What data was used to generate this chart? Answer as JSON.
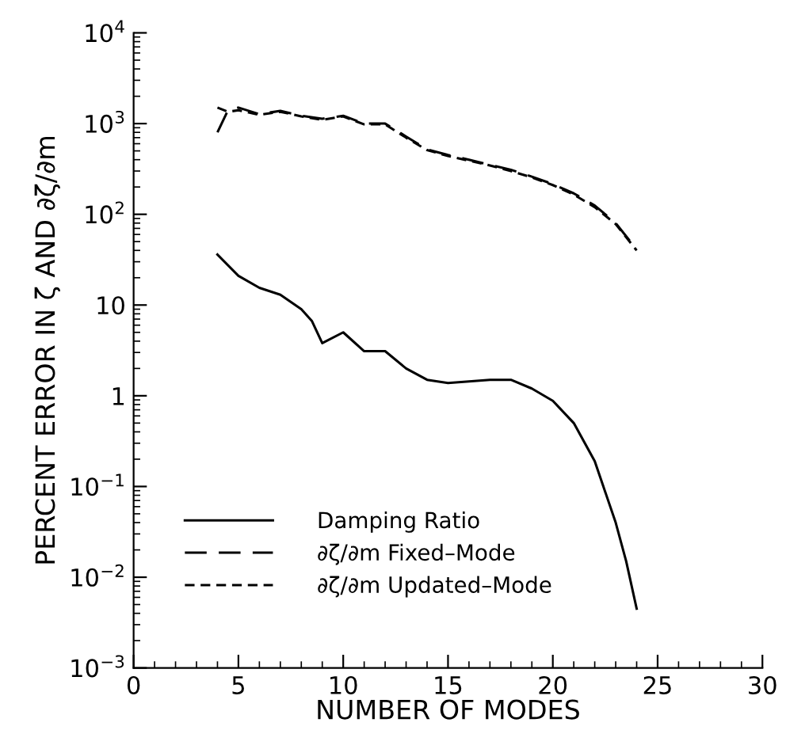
{
  "chart_data": {
    "type": "line",
    "xlabel": "NUMBER OF MODES",
    "ylabel": "PERCENT ERROR IN ζ AND ∂ζ/∂m",
    "log": "y",
    "xlim": [
      0,
      30
    ],
    "xticks": [
      0,
      5,
      10,
      15,
      20,
      25,
      30
    ],
    "ylim": [
      0.001,
      10000
    ],
    "yticks": [
      {
        "value": 0.001,
        "label": "10$^{−3}$"
      },
      {
        "value": 0.01,
        "label": "10$^{−2}$"
      },
      {
        "value": 0.1,
        "label": "10$^{−1}$"
      },
      1,
      10,
      {
        "value": 100,
        "label": "10$^{2}$"
      },
      {
        "value": 1000,
        "label": "10$^{3}$"
      },
      {
        "value": 10000,
        "label": "10$^{4}$"
      }
    ],
    "grid": false,
    "legend": "bottom left",
    "marker": "none",
    "series": [
      {
        "name": "Damping Ratio",
        "color": "#000000",
        "line_style": "solid",
        "x": [
          4,
          5,
          6,
          7,
          8,
          8.5,
          9,
          10,
          11,
          12,
          13,
          14,
          15,
          17,
          18,
          19,
          20,
          21,
          22,
          23,
          23.5,
          24
        ],
        "values": [
          36,
          21,
          15.5,
          13,
          9,
          6.7,
          3.8,
          5,
          3.1,
          3.1,
          2,
          1.5,
          1.38,
          1.5,
          1.5,
          1.2,
          0.88,
          0.5,
          0.19,
          0.04,
          0.015,
          0.0045
        ]
      },
      {
        "name": "∂ζ/∂m Fixed–Mode",
        "color": "#000000",
        "line_style": "longdash",
        "x": [
          4,
          4.5,
          5,
          6,
          7,
          8,
          9,
          10,
          11,
          12,
          13,
          14,
          15,
          16,
          17,
          18,
          19,
          20,
          21,
          22,
          23,
          24
        ],
        "values": [
          800,
          1400,
          1500,
          1270,
          1380,
          1220,
          1130,
          1220,
          1000,
          1000,
          720,
          520,
          450,
          400,
          350,
          310,
          260,
          215,
          170,
          125,
          80,
          41
        ]
      },
      {
        "name": "∂ζ/∂m Updated–Mode",
        "color": "#000000",
        "line_style": "dashed",
        "x": [
          4,
          4.5,
          5,
          6,
          7,
          8,
          9,
          10,
          11,
          12,
          13,
          14,
          15,
          16,
          17,
          18,
          19,
          20,
          21,
          22,
          23,
          24
        ],
        "values": [
          1500,
          1350,
          1400,
          1250,
          1350,
          1200,
          1100,
          1200,
          980,
          980,
          700,
          510,
          440,
          390,
          345,
          300,
          255,
          210,
          165,
          120,
          78,
          40
        ]
      }
    ]
  }
}
